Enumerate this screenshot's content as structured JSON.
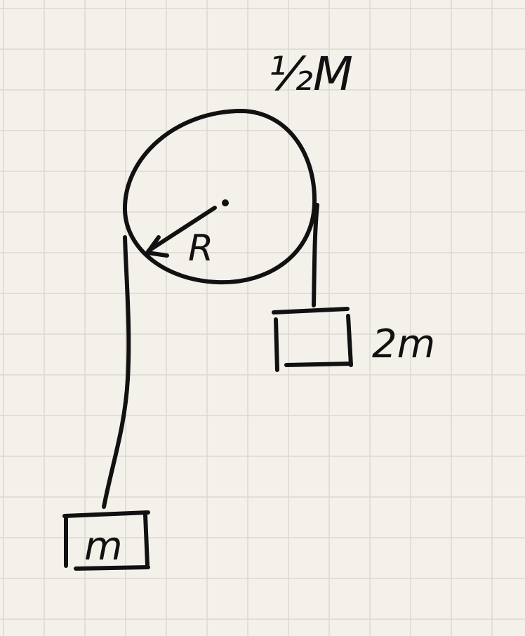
{
  "diagram": {
    "pulley_mass_label": "½M",
    "radius_label": "R",
    "left_block_label": "m",
    "right_block_label": "2m"
  },
  "colors": {
    "paper": "#f4f1ea",
    "grid": "#dcd9d1",
    "ink": "#111111"
  }
}
